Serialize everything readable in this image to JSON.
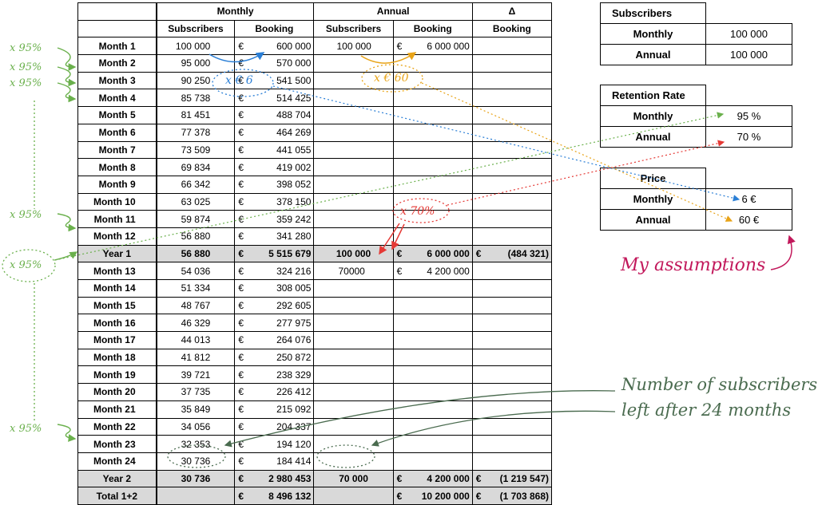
{
  "header": {
    "group_monthly": "Monthly",
    "group_annual": "Annual",
    "group_delta": "Δ",
    "col_subscribers": "Subscribers",
    "col_booking": "Booking",
    "currency": "€"
  },
  "rows": [
    {
      "label": "Month 1",
      "m_sub": "100 000",
      "m_book": "600 000",
      "a_sub": "100 000",
      "a_book": "6 000 000"
    },
    {
      "label": "Month 2",
      "m_sub": "95 000",
      "m_book": "570 000"
    },
    {
      "label": "Month 3",
      "m_sub": "90 250",
      "m_book": "541 500"
    },
    {
      "label": "Month 4",
      "m_sub": "85 738",
      "m_book": "514 425"
    },
    {
      "label": "Month 5",
      "m_sub": "81 451",
      "m_book": "488 704"
    },
    {
      "label": "Month 6",
      "m_sub": "77 378",
      "m_book": "464 269"
    },
    {
      "label": "Month 7",
      "m_sub": "73 509",
      "m_book": "441 055"
    },
    {
      "label": "Month 8",
      "m_sub": "69 834",
      "m_book": "419 002"
    },
    {
      "label": "Month 9",
      "m_sub": "66 342",
      "m_book": "398 052"
    },
    {
      "label": "Month 10",
      "m_sub": "63 025",
      "m_book": "378 150"
    },
    {
      "label": "Month 11",
      "m_sub": "59 874",
      "m_book": "359 242"
    },
    {
      "label": "Month 12",
      "m_sub": "56 880",
      "m_book": "341 280"
    },
    {
      "label": "Year 1",
      "m_sub": "56 880",
      "m_book": "5 515 679",
      "a_sub": "100 000",
      "a_book": "6 000 000",
      "delta": "(484 321)",
      "sum": true
    },
    {
      "label": "Month 13",
      "m_sub": "54 036",
      "m_book": "324 216",
      "a_sub": "70000",
      "a_book": "4 200 000"
    },
    {
      "label": "Month 14",
      "m_sub": "51 334",
      "m_book": "308 005"
    },
    {
      "label": "Month 15",
      "m_sub": "48 767",
      "m_book": "292 605"
    },
    {
      "label": "Month 16",
      "m_sub": "46 329",
      "m_book": "277 975"
    },
    {
      "label": "Month 17",
      "m_sub": "44 013",
      "m_book": "264 076"
    },
    {
      "label": "Month 18",
      "m_sub": "41 812",
      "m_book": "250 872"
    },
    {
      "label": "Month 19",
      "m_sub": "39 721",
      "m_book": "238 329"
    },
    {
      "label": "Month 20",
      "m_sub": "37 735",
      "m_book": "226 412"
    },
    {
      "label": "Month 21",
      "m_sub": "35 849",
      "m_book": "215 092"
    },
    {
      "label": "Month 22",
      "m_sub": "34 056",
      "m_book": "204 337"
    },
    {
      "label": "Month 23",
      "m_sub": "32 353",
      "m_book": "194 120"
    },
    {
      "label": "Month 24",
      "m_sub": "30 736",
      "m_book": "184 414"
    },
    {
      "label": "Year 2",
      "m_sub": "30 736",
      "m_book": "2 980 453",
      "a_sub": "70 000",
      "a_book": "4 200 000",
      "delta": "(1 219 547)",
      "sum": true
    },
    {
      "label": "Total 1+2",
      "m_book": "8 496 132",
      "a_book": "10 200 000",
      "delta": "(1 703 868)",
      "sum": true
    }
  ],
  "side": {
    "subscribers": {
      "title": "Subscribers",
      "rows": [
        {
          "label": "Monthly",
          "value": "100 000"
        },
        {
          "label": "Annual",
          "value": "100 000"
        }
      ]
    },
    "retention": {
      "title": "Retention Rate",
      "rows": [
        {
          "label": "Monthly",
          "value": "95 %"
        },
        {
          "label": "Annual",
          "value": "70 %"
        }
      ]
    },
    "price": {
      "title": "Price",
      "rows": [
        {
          "label": "Monthly",
          "value": "6 €"
        },
        {
          "label": "Annual",
          "value": "60 €"
        }
      ]
    }
  },
  "annotations": {
    "x95": "x 95%",
    "x6": "x € 6",
    "x60": "x € 60",
    "x70": "x 70%",
    "assumptions": "My assumptions",
    "left_line1": "Number of subscribers",
    "left_line2": "left after 24 months"
  },
  "colors": {
    "green": "#6ab04c",
    "blue": "#2b7fd6",
    "orange": "#e8a317",
    "red": "#e53935",
    "pink": "#c2185b",
    "dark_green": "#4a6b4f",
    "sum_row": "#d9d9d9"
  }
}
